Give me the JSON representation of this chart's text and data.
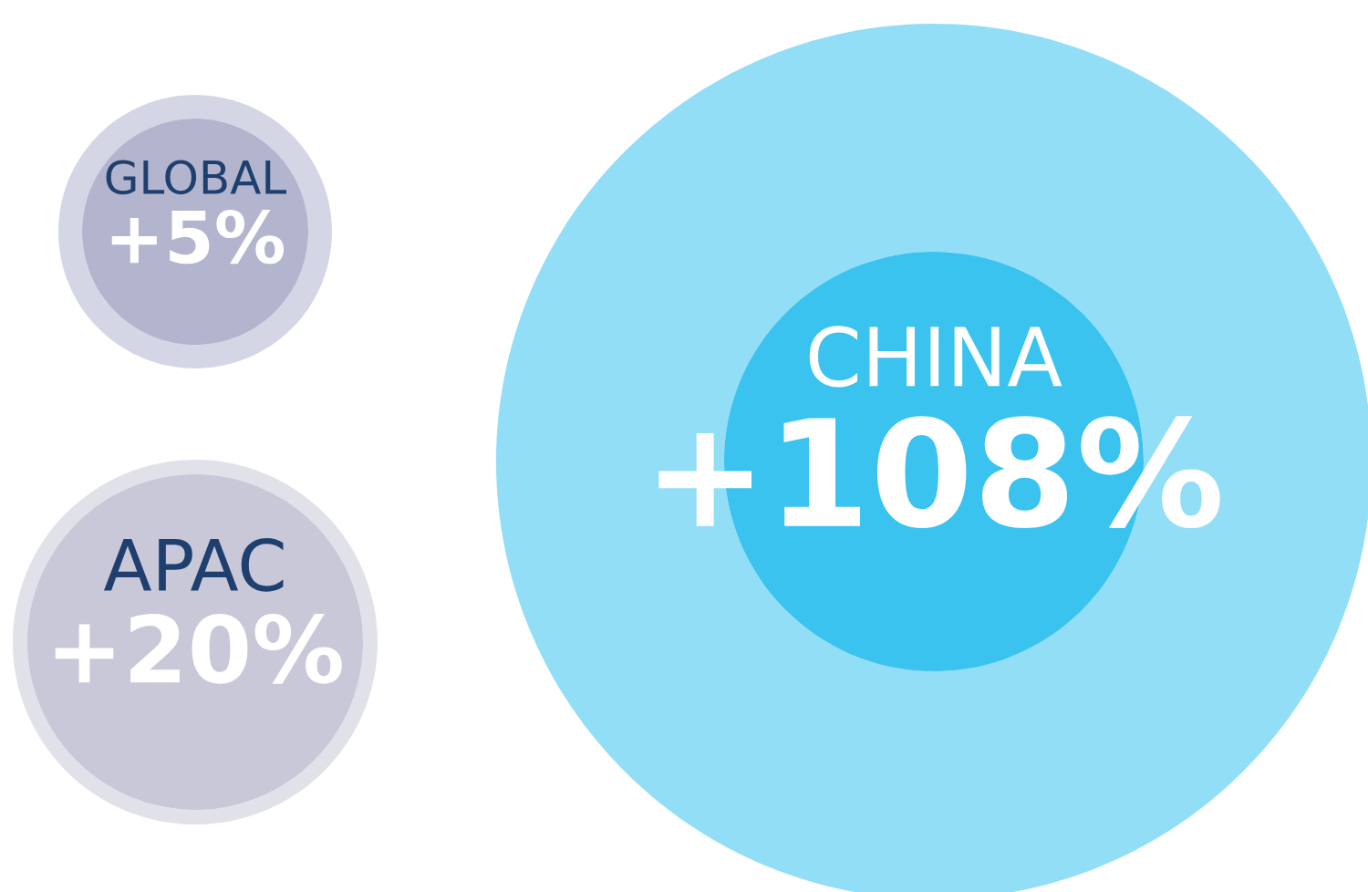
{
  "chart_data": {
    "type": "other",
    "categories": [
      "GLOBAL",
      "APAC",
      "CHINA"
    ],
    "values": [
      5,
      20,
      108
    ],
    "value_labels": [
      "+5%",
      "+20%",
      "+108%"
    ],
    "colors": [
      "#b3b5cf",
      "#c8c8d8",
      "#3bc3f0"
    ],
    "legend": false
  }
}
